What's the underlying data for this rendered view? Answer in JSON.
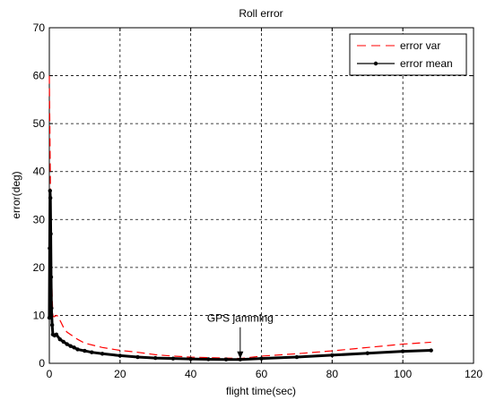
{
  "chart_data": {
    "type": "line",
    "title": "Roll error",
    "xlabel": "flight time(sec)",
    "ylabel": "error(deg)",
    "xlim": [
      0,
      120
    ],
    "ylim": [
      0,
      70
    ],
    "xticks": [
      0,
      20,
      40,
      60,
      80,
      100,
      120
    ],
    "yticks": [
      0,
      10,
      20,
      30,
      40,
      50,
      60,
      70
    ],
    "grid": true,
    "legend_position": "top-right",
    "annotation": {
      "text": "GPS jamming",
      "x": 54,
      "y": 0.8
    },
    "series": [
      {
        "name": "error var",
        "color": "#ff0000",
        "style": "dashed",
        "x": [
          0,
          0.2,
          0.4,
          0.6,
          0.8,
          1.0,
          1.3,
          1.6,
          2,
          2.5,
          3,
          4,
          5,
          6,
          8,
          10,
          15,
          20,
          25,
          30,
          35,
          40,
          45,
          50,
          54,
          60,
          70,
          80,
          90,
          100,
          108
        ],
        "y": [
          60,
          45,
          30,
          20,
          14,
          10,
          9.7,
          9.8,
          10,
          9.8,
          9,
          7.5,
          6.5,
          6,
          5,
          4.2,
          3.3,
          2.7,
          2.3,
          1.8,
          1.5,
          1.3,
          1.2,
          1.1,
          1.0,
          1.5,
          2.0,
          2.6,
          3.3,
          4.0,
          4.4
        ]
      },
      {
        "name": "error mean",
        "color": "#000000",
        "style": "solid-markers",
        "x": [
          0,
          0.1,
          0.2,
          0.3,
          0.4,
          0.5,
          0.6,
          0.8,
          1.0,
          1.5,
          2,
          3,
          4,
          5,
          6,
          7,
          8,
          10,
          12,
          15,
          20,
          25,
          30,
          35,
          40,
          45,
          50,
          54,
          60,
          70,
          80,
          90,
          100,
          108
        ],
        "y": [
          9.5,
          24,
          36,
          34.5,
          27,
          18,
          11.5,
          8,
          6,
          5.8,
          6,
          5,
          4.5,
          4,
          3.6,
          3.3,
          2.9,
          2.6,
          2.3,
          2.0,
          1.6,
          1.3,
          1.1,
          1.0,
          0.9,
          0.85,
          0.8,
          0.8,
          1.0,
          1.3,
          1.7,
          2.1,
          2.5,
          2.7
        ]
      }
    ]
  }
}
